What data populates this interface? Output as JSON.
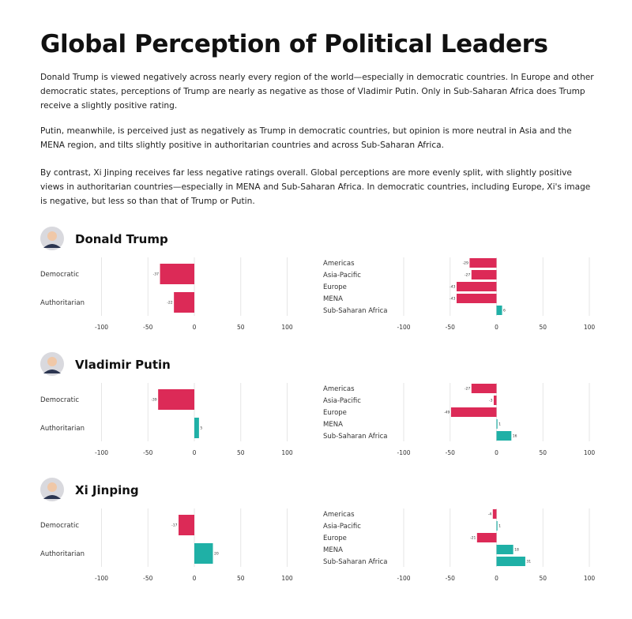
{
  "title": "Global Perception of Political Leaders",
  "paragraphs": [
    "Donald Trump is viewed negatively across nearly every region of the world—especially in democratic countries. In Europe and other democratic states, perceptions of Trump are nearly as negative as those of Vladimir Putin. Only in Sub-Saharan Africa does Trump receive a slightly positive rating.",
    "Putin, meanwhile, is perceived just as negatively as Trump in democratic countries, but opinion is more neutral in Asia and the MENA region, and tilts slightly positive in authoritarian countries and across Sub-Saharan Africa.",
    "By contrast, Xi Jinping receives far less negative ratings overall. Global perceptions are more evenly split, with slightly positive views in authoritarian countries—especially in MENA and Sub-Saharan Africa. In democratic countries, including Europe, Xi's image is negative, but less so than that of Trump or Putin."
  ],
  "colors": {
    "negative": "#dc2a57",
    "positive": "#1fb0a6"
  },
  "chart_data": [
    {
      "type": "bar",
      "leader": "Donald Trump",
      "categories": [
        "Democratic",
        "Authoritarian"
      ],
      "values": [
        -37,
        -22
      ],
      "xlim": [
        -100,
        100
      ],
      "ticks": [
        -100,
        -50,
        0,
        50,
        100
      ],
      "grid": true
    },
    {
      "type": "bar",
      "leader": "Donald Trump",
      "categories": [
        "Americas",
        "Asia-Pacific",
        "Europe",
        "MENA",
        "Sub-Saharan Africa"
      ],
      "values": [
        -29,
        -27,
        -43,
        -43,
        6
      ],
      "xlim": [
        -100,
        100
      ],
      "ticks": [
        -100,
        -50,
        0,
        50,
        100
      ],
      "grid": true
    },
    {
      "type": "bar",
      "leader": "Vladimir Putin",
      "categories": [
        "Democratic",
        "Authoritarian"
      ],
      "values": [
        -39,
        5
      ],
      "xlim": [
        -100,
        100
      ],
      "ticks": [
        -100,
        -50,
        0,
        50,
        100
      ],
      "grid": true
    },
    {
      "type": "bar",
      "leader": "Vladimir Putin",
      "categories": [
        "Americas",
        "Asia-Pacific",
        "Europe",
        "MENA",
        "Sub-Saharan Africa"
      ],
      "values": [
        -27,
        -3,
        -49,
        1,
        16
      ],
      "xlim": [
        -100,
        100
      ],
      "ticks": [
        -100,
        -50,
        0,
        50,
        100
      ],
      "grid": true
    },
    {
      "type": "bar",
      "leader": "Xi Jinping",
      "categories": [
        "Democratic",
        "Authoritarian"
      ],
      "values": [
        -17,
        20
      ],
      "xlim": [
        -100,
        100
      ],
      "ticks": [
        -100,
        -50,
        0,
        50,
        100
      ],
      "grid": true
    },
    {
      "type": "bar",
      "leader": "Xi Jinping",
      "categories": [
        "Americas",
        "Asia-Pacific",
        "Europe",
        "MENA",
        "Sub-Saharan Africa"
      ],
      "values": [
        -4,
        1,
        -21,
        18,
        31
      ],
      "xlim": [
        -100,
        100
      ],
      "ticks": [
        -100,
        -50,
        0,
        50,
        100
      ],
      "grid": true
    }
  ]
}
